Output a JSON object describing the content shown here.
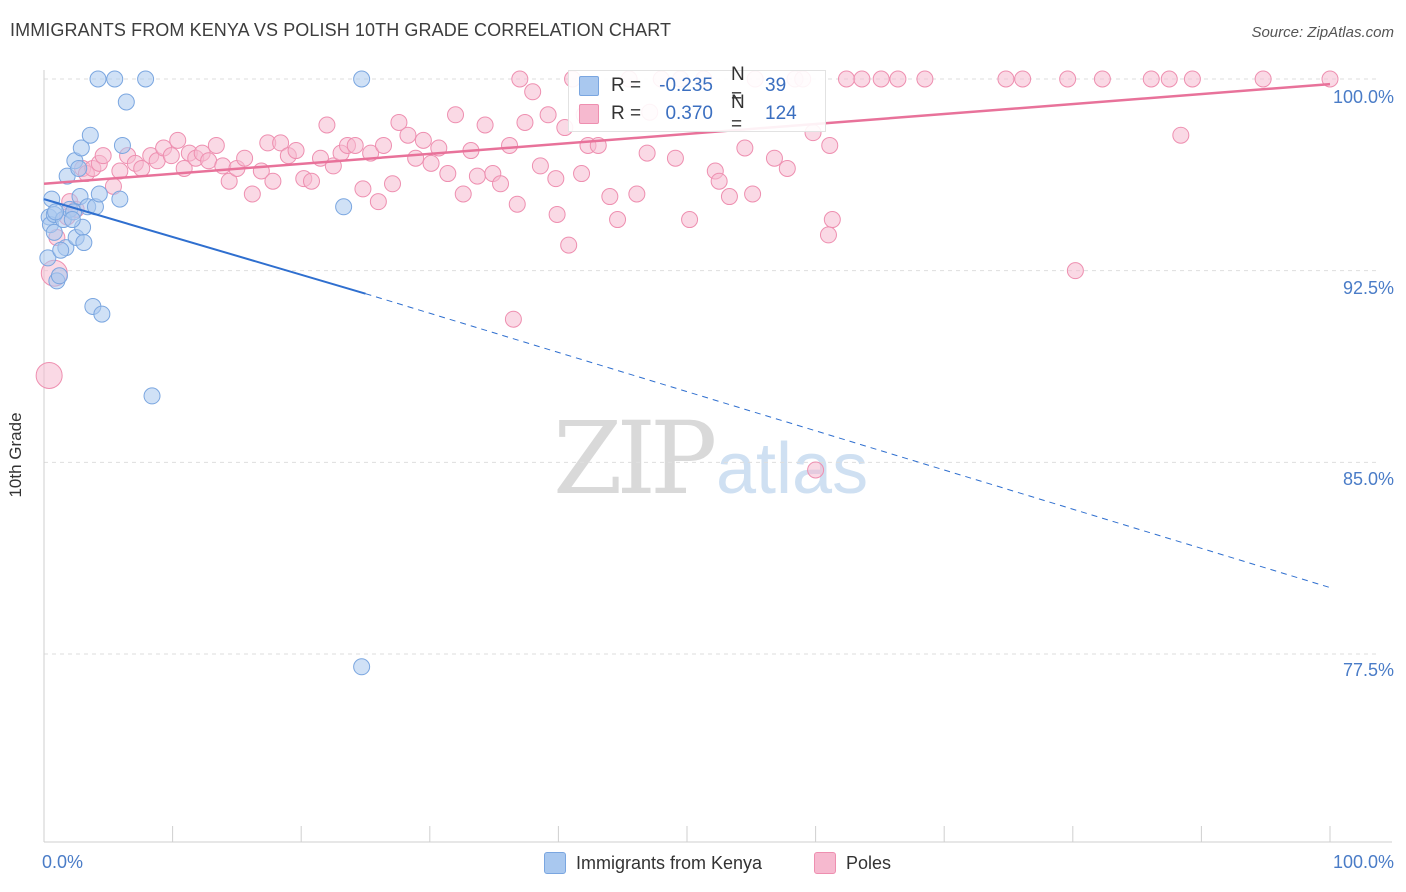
{
  "title": "IMMIGRANTS FROM KENYA VS POLISH 10TH GRADE CORRELATION CHART",
  "source": "Source: ZipAtlas.com",
  "watermark": {
    "zip": "ZIP",
    "atlas": "atlas"
  },
  "colors": {
    "blue_fill": "#a9c8ef",
    "blue_stroke": "#7aa6e0",
    "blue_line": "#2f6fcf",
    "pink_fill": "#f6b9cf",
    "pink_stroke": "#ee8fb0",
    "pink_line": "#e8729a",
    "tick_label": "#4a7cc7"
  },
  "legend_top": {
    "rows": [
      {
        "r_label": "R =",
        "r_value": "-0.235",
        "n_label": "N =",
        "n_value": "39"
      },
      {
        "r_label": "R =",
        "r_value": "0.370",
        "n_label": "N =",
        "n_value": "124"
      }
    ]
  },
  "legend_bottom": {
    "series1": "Immigrants from Kenya",
    "series2": "Poles"
  },
  "axis": {
    "x_min_label": "0.0%",
    "x_max_label": "100.0%",
    "y_label": "10th Grade",
    "y_ticks": [
      "100.0%",
      "92.5%",
      "85.0%",
      "77.5%"
    ]
  },
  "chart_data": {
    "type": "scatter",
    "title": "IMMIGRANTS FROM KENYA VS POLISH 10TH GRADE CORRELATION CHART",
    "xlabel": "",
    "ylabel": "10th Grade",
    "xlim": [
      0,
      100
    ],
    "ylim": [
      70.5,
      100.9
    ],
    "y_ticks": [
      100.0,
      92.5,
      85.0,
      77.5
    ],
    "grid": "horizontal dashed",
    "series": [
      {
        "name": "Immigrants from Kenya",
        "r": -0.235,
        "n": 39,
        "trend": {
          "x0": 0,
          "y0": 95.3,
          "x1": 25,
          "y1": 91.6,
          "dashed_to_x": 100,
          "dashed_to_y": 80.1
        },
        "points": [
          [
            0.4,
            94.6
          ],
          [
            0.5,
            94.3
          ],
          [
            0.6,
            95.3
          ],
          [
            0.8,
            94.7
          ],
          [
            0.8,
            94.0
          ],
          [
            1.0,
            92.1
          ],
          [
            1.2,
            92.3
          ],
          [
            1.5,
            94.5
          ],
          [
            1.7,
            93.4
          ],
          [
            1.8,
            96.2
          ],
          [
            2.0,
            94.9
          ],
          [
            2.3,
            94.8
          ],
          [
            2.4,
            96.8
          ],
          [
            2.5,
            93.8
          ],
          [
            2.7,
            96.5
          ],
          [
            2.8,
            95.4
          ],
          [
            2.9,
            97.3
          ],
          [
            3.0,
            94.2
          ],
          [
            3.1,
            93.6
          ],
          [
            3.4,
            95.0
          ],
          [
            3.6,
            97.8
          ],
          [
            3.8,
            91.1
          ],
          [
            4.0,
            95.0
          ],
          [
            4.3,
            95.5
          ],
          [
            4.5,
            90.8
          ],
          [
            5.5,
            100.0
          ],
          [
            5.9,
            95.3
          ],
          [
            6.1,
            97.4
          ],
          [
            6.4,
            99.1
          ],
          [
            4.2,
            100.0
          ],
          [
            7.9,
            100.0
          ],
          [
            8.4,
            87.6
          ],
          [
            24.7,
            100.0
          ],
          [
            23.3,
            95.0
          ],
          [
            24.7,
            77.0
          ],
          [
            0.3,
            93.0
          ],
          [
            1.3,
            93.3
          ],
          [
            2.2,
            94.5
          ],
          [
            0.9,
            94.8
          ]
        ]
      },
      {
        "name": "Poles",
        "r": 0.37,
        "n": 124,
        "trend": {
          "x0": 0,
          "y0": 95.9,
          "x1": 100,
          "y1": 99.8
        },
        "points": [
          [
            0.4,
            88.4
          ],
          [
            0.8,
            92.4
          ],
          [
            1.0,
            93.8
          ],
          [
            1.8,
            94.6
          ],
          [
            2.0,
            95.2
          ],
          [
            2.5,
            94.9
          ],
          [
            3.0,
            96.5
          ],
          [
            3.3,
            96.3
          ],
          [
            3.8,
            96.5
          ],
          [
            4.3,
            96.7
          ],
          [
            4.6,
            97.0
          ],
          [
            5.4,
            95.8
          ],
          [
            5.9,
            96.4
          ],
          [
            6.5,
            97.0
          ],
          [
            7.1,
            96.7
          ],
          [
            7.6,
            96.5
          ],
          [
            8.3,
            97.0
          ],
          [
            8.8,
            96.8
          ],
          [
            9.3,
            97.3
          ],
          [
            9.9,
            97.0
          ],
          [
            10.4,
            97.6
          ],
          [
            10.9,
            96.5
          ],
          [
            11.3,
            97.1
          ],
          [
            11.8,
            96.9
          ],
          [
            12.3,
            97.1
          ],
          [
            12.8,
            96.8
          ],
          [
            13.4,
            97.4
          ],
          [
            13.9,
            96.6
          ],
          [
            14.4,
            96.0
          ],
          [
            15.0,
            96.5
          ],
          [
            15.6,
            96.9
          ],
          [
            16.2,
            95.5
          ],
          [
            16.9,
            96.4
          ],
          [
            17.4,
            97.5
          ],
          [
            17.8,
            96.0
          ],
          [
            18.4,
            97.5
          ],
          [
            19.0,
            97.0
          ],
          [
            19.6,
            97.2
          ],
          [
            20.2,
            96.1
          ],
          [
            20.8,
            96.0
          ],
          [
            21.5,
            96.9
          ],
          [
            22.0,
            98.2
          ],
          [
            22.5,
            96.6
          ],
          [
            23.1,
            97.1
          ],
          [
            23.6,
            97.4
          ],
          [
            24.2,
            97.4
          ],
          [
            24.8,
            95.7
          ],
          [
            25.4,
            97.1
          ],
          [
            26.0,
            95.2
          ],
          [
            26.4,
            97.4
          ],
          [
            27.1,
            95.9
          ],
          [
            27.6,
            98.3
          ],
          [
            28.3,
            97.8
          ],
          [
            28.9,
            96.9
          ],
          [
            29.5,
            97.6
          ],
          [
            30.1,
            96.7
          ],
          [
            30.7,
            97.3
          ],
          [
            31.4,
            96.3
          ],
          [
            32.0,
            98.6
          ],
          [
            32.6,
            95.5
          ],
          [
            33.2,
            97.2
          ],
          [
            33.7,
            96.2
          ],
          [
            34.3,
            98.2
          ],
          [
            34.9,
            96.3
          ],
          [
            35.5,
            95.9
          ],
          [
            36.2,
            97.4
          ],
          [
            36.8,
            95.1
          ],
          [
            37.4,
            98.3
          ],
          [
            38.0,
            99.5
          ],
          [
            38.6,
            96.6
          ],
          [
            39.2,
            98.6
          ],
          [
            39.9,
            94.7
          ],
          [
            40.5,
            98.1
          ],
          [
            41.1,
            100.0
          ],
          [
            41.8,
            96.3
          ],
          [
            42.3,
            97.4
          ],
          [
            43.1,
            97.4
          ],
          [
            44.0,
            95.4
          ],
          [
            44.6,
            94.5
          ],
          [
            45.5,
            100.0
          ],
          [
            46.1,
            95.5
          ],
          [
            46.9,
            97.1
          ],
          [
            48.0,
            100.0
          ],
          [
            49.1,
            96.9
          ],
          [
            49.5,
            100.0
          ],
          [
            50.2,
            94.5
          ],
          [
            51.3,
            100.0
          ],
          [
            52.2,
            96.4
          ],
          [
            52.5,
            96.0
          ],
          [
            53.3,
            95.4
          ],
          [
            54.5,
            97.3
          ],
          [
            55.3,
            100.0
          ],
          [
            56.8,
            96.9
          ],
          [
            58.4,
            100.0
          ],
          [
            59.0,
            100.0
          ],
          [
            61.1,
            97.4
          ],
          [
            62.4,
            100.0
          ],
          [
            63.6,
            100.0
          ],
          [
            65.1,
            100.0
          ],
          [
            66.4,
            100.0
          ],
          [
            68.5,
            100.0
          ],
          [
            74.8,
            100.0
          ],
          [
            76.1,
            100.0
          ],
          [
            79.6,
            100.0
          ],
          [
            82.3,
            100.0
          ],
          [
            86.1,
            100.0
          ],
          [
            87.5,
            100.0
          ],
          [
            89.3,
            100.0
          ],
          [
            94.8,
            100.0
          ],
          [
            100.0,
            100.0
          ],
          [
            36.5,
            90.6
          ],
          [
            60.0,
            84.7
          ],
          [
            80.2,
            92.5
          ],
          [
            88.4,
            97.8
          ],
          [
            61.3,
            94.5
          ],
          [
            57.8,
            96.5
          ],
          [
            55.1,
            95.5
          ],
          [
            61.0,
            93.9
          ],
          [
            40.8,
            93.5
          ],
          [
            37.0,
            100.0
          ],
          [
            39.8,
            96.1
          ],
          [
            42.0,
            98.6
          ],
          [
            59.8,
            97.9
          ],
          [
            47.1,
            98.7
          ]
        ]
      }
    ]
  }
}
